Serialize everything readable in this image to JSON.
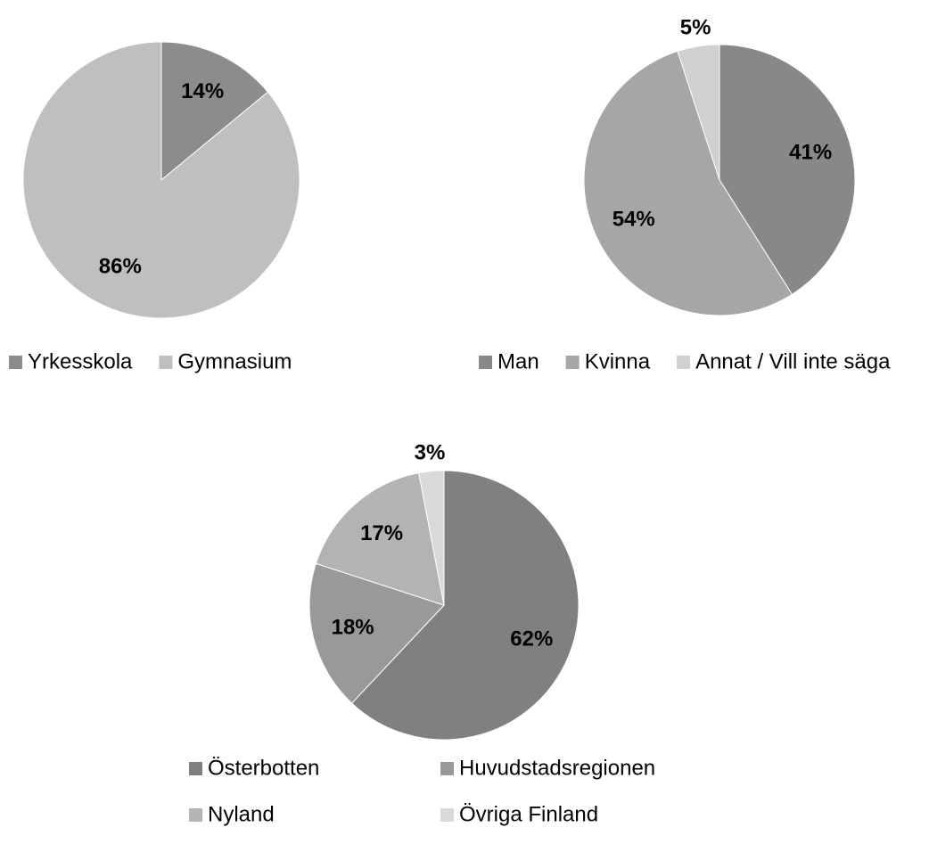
{
  "chart_data": [
    {
      "type": "pie",
      "categories": [
        "Yrkesskola",
        "Gymnasium"
      ],
      "values": [
        14,
        86
      ],
      "value_labels": [
        "14%",
        "86%"
      ],
      "colors": [
        "#8c8c8c",
        "#bfbfbf"
      ]
    },
    {
      "type": "pie",
      "categories": [
        "Man",
        "Kvinna",
        "Annat / Vill inte säga"
      ],
      "values": [
        41,
        54,
        5
      ],
      "value_labels": [
        "41%",
        "54%",
        "5%"
      ],
      "colors": [
        "#888888",
        "#a6a6a6",
        "#d0d0d0"
      ]
    },
    {
      "type": "pie",
      "categories": [
        "Österbotten",
        "Huvudstadsregionen",
        "Nyland",
        "Övriga Finland"
      ],
      "values": [
        62,
        18,
        17,
        3
      ],
      "value_labels": [
        "62%",
        "18%",
        "17%",
        "3%"
      ],
      "colors": [
        "#808080",
        "#999999",
        "#b3b3b3",
        "#d9d9d9"
      ]
    }
  ]
}
